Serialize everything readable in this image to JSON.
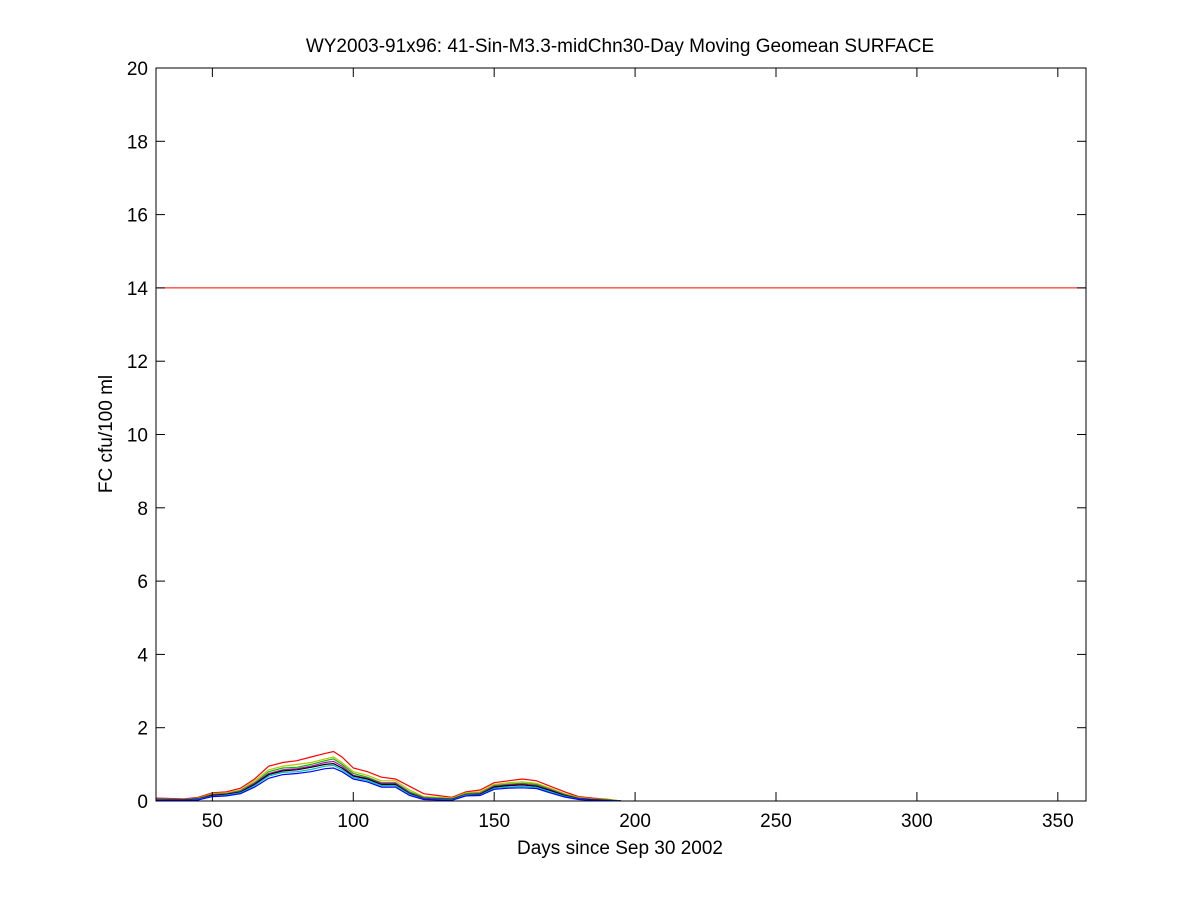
{
  "chart_data": {
    "type": "line",
    "title": "WY2003-91x96: 41-Sin-M3.3-midChn30-Day Moving Geomean SURFACE",
    "xlabel": "Days since Sep 30 2002",
    "ylabel": "FC cfu/100 ml",
    "xlim": [
      30,
      360
    ],
    "ylim": [
      0,
      20
    ],
    "xticks": [
      50,
      100,
      150,
      200,
      250,
      300,
      350
    ],
    "yticks": [
      0,
      2,
      4,
      6,
      8,
      10,
      12,
      14,
      16,
      18,
      20
    ],
    "grid": false,
    "legend": "none",
    "reference_line": {
      "y": 14,
      "color": "#ff0000"
    },
    "series": [
      {
        "color": "#ff0000",
        "x": [
          30,
          40,
          45,
          50,
          55,
          60,
          65,
          70,
          75,
          80,
          85,
          90,
          93,
          96,
          100,
          105,
          110,
          115,
          120,
          125,
          130,
          135,
          140,
          145,
          150,
          155,
          160,
          165,
          170,
          175,
          180,
          185,
          190,
          195
        ],
        "y": [
          0.08,
          0.06,
          0.1,
          0.22,
          0.25,
          0.35,
          0.6,
          0.95,
          1.05,
          1.1,
          1.2,
          1.3,
          1.35,
          1.2,
          0.9,
          0.8,
          0.65,
          0.6,
          0.4,
          0.2,
          0.15,
          0.1,
          0.25,
          0.3,
          0.5,
          0.55,
          0.6,
          0.55,
          0.4,
          0.25,
          0.12,
          0.08,
          0.05,
          0.0
        ]
      },
      {
        "color": "#bfbf00",
        "x": [
          30,
          40,
          45,
          50,
          55,
          60,
          65,
          70,
          75,
          80,
          85,
          90,
          93,
          96,
          100,
          105,
          110,
          115,
          120,
          125,
          130,
          135,
          140,
          145,
          150,
          155,
          160,
          165,
          170,
          175,
          180,
          185,
          190,
          195
        ],
        "y": [
          0.06,
          0.05,
          0.08,
          0.2,
          0.22,
          0.3,
          0.55,
          0.85,
          0.95,
          1.0,
          1.05,
          1.15,
          1.2,
          1.05,
          0.8,
          0.7,
          0.55,
          0.55,
          0.3,
          0.12,
          0.1,
          0.08,
          0.22,
          0.25,
          0.45,
          0.5,
          0.52,
          0.48,
          0.35,
          0.2,
          0.1,
          0.06,
          0.04,
          0.0
        ]
      },
      {
        "color": "#00bf00",
        "x": [
          30,
          40,
          45,
          50,
          55,
          60,
          65,
          70,
          75,
          80,
          85,
          90,
          93,
          96,
          100,
          105,
          110,
          115,
          120,
          125,
          130,
          135,
          140,
          145,
          150,
          155,
          160,
          165,
          170,
          175,
          180,
          185,
          190,
          195
        ],
        "y": [
          0.05,
          0.04,
          0.07,
          0.18,
          0.2,
          0.28,
          0.5,
          0.8,
          0.9,
          0.92,
          1.0,
          1.1,
          1.15,
          1.0,
          0.75,
          0.65,
          0.5,
          0.5,
          0.25,
          0.1,
          0.08,
          0.06,
          0.2,
          0.22,
          0.42,
          0.46,
          0.48,
          0.45,
          0.32,
          0.18,
          0.08,
          0.05,
          0.03,
          0.0
        ]
      },
      {
        "color": "#bf00bf",
        "x": [
          30,
          40,
          45,
          50,
          55,
          60,
          65,
          70,
          75,
          80,
          85,
          90,
          93,
          96,
          100,
          105,
          110,
          115,
          120,
          125,
          130,
          135,
          140,
          145,
          150,
          155,
          160,
          165,
          170,
          175,
          180,
          185,
          190,
          195
        ],
        "y": [
          0.05,
          0.04,
          0.06,
          0.17,
          0.19,
          0.26,
          0.48,
          0.75,
          0.85,
          0.88,
          0.95,
          1.05,
          1.08,
          0.95,
          0.7,
          0.62,
          0.48,
          0.48,
          0.22,
          0.08,
          0.06,
          0.05,
          0.18,
          0.2,
          0.4,
          0.44,
          0.46,
          0.42,
          0.3,
          0.16,
          0.07,
          0.04,
          0.02,
          0.0
        ]
      },
      {
        "color": "#000000",
        "x": [
          30,
          40,
          45,
          50,
          55,
          60,
          65,
          70,
          75,
          80,
          85,
          90,
          93,
          96,
          100,
          105,
          110,
          115,
          120,
          125,
          130,
          135,
          140,
          145,
          150,
          155,
          160,
          165,
          170,
          175,
          180,
          185,
          190,
          195
        ],
        "y": [
          0.04,
          0.03,
          0.05,
          0.15,
          0.18,
          0.24,
          0.45,
          0.72,
          0.82,
          0.85,
          0.92,
          1.0,
          1.02,
          0.9,
          0.68,
          0.6,
          0.45,
          0.45,
          0.2,
          0.06,
          0.05,
          0.04,
          0.17,
          0.18,
          0.38,
          0.42,
          0.44,
          0.4,
          0.28,
          0.15,
          0.06,
          0.03,
          0.02,
          0.0
        ]
      },
      {
        "color": "#00bfbf",
        "x": [
          30,
          40,
          45,
          50,
          55,
          60,
          65,
          70,
          75,
          80,
          85,
          90,
          93,
          96,
          100,
          105,
          110,
          115,
          120,
          125,
          130,
          135,
          140,
          145,
          150,
          155,
          160,
          165,
          170,
          175,
          180,
          185,
          190,
          195
        ],
        "y": [
          0.03,
          0.02,
          0.04,
          0.13,
          0.16,
          0.22,
          0.42,
          0.68,
          0.78,
          0.8,
          0.86,
          0.95,
          0.97,
          0.85,
          0.64,
          0.56,
          0.42,
          0.42,
          0.18,
          0.05,
          0.04,
          0.03,
          0.16,
          0.16,
          0.35,
          0.38,
          0.4,
          0.37,
          0.25,
          0.13,
          0.05,
          0.02,
          0.01,
          0.0
        ]
      },
      {
        "color": "#0000ff",
        "x": [
          30,
          40,
          45,
          50,
          55,
          60,
          65,
          70,
          75,
          80,
          85,
          90,
          93,
          96,
          100,
          105,
          110,
          115,
          120,
          125,
          130,
          135,
          140,
          145,
          150,
          155,
          160,
          165,
          170,
          175,
          180,
          185,
          190,
          195
        ],
        "y": [
          0.02,
          0.01,
          0.03,
          0.12,
          0.14,
          0.2,
          0.38,
          0.62,
          0.72,
          0.75,
          0.8,
          0.88,
          0.9,
          0.8,
          0.6,
          0.52,
          0.38,
          0.38,
          0.15,
          0.04,
          0.03,
          0.02,
          0.14,
          0.15,
          0.32,
          0.35,
          0.36,
          0.34,
          0.22,
          0.11,
          0.04,
          0.02,
          0.01,
          0.0
        ]
      }
    ]
  }
}
